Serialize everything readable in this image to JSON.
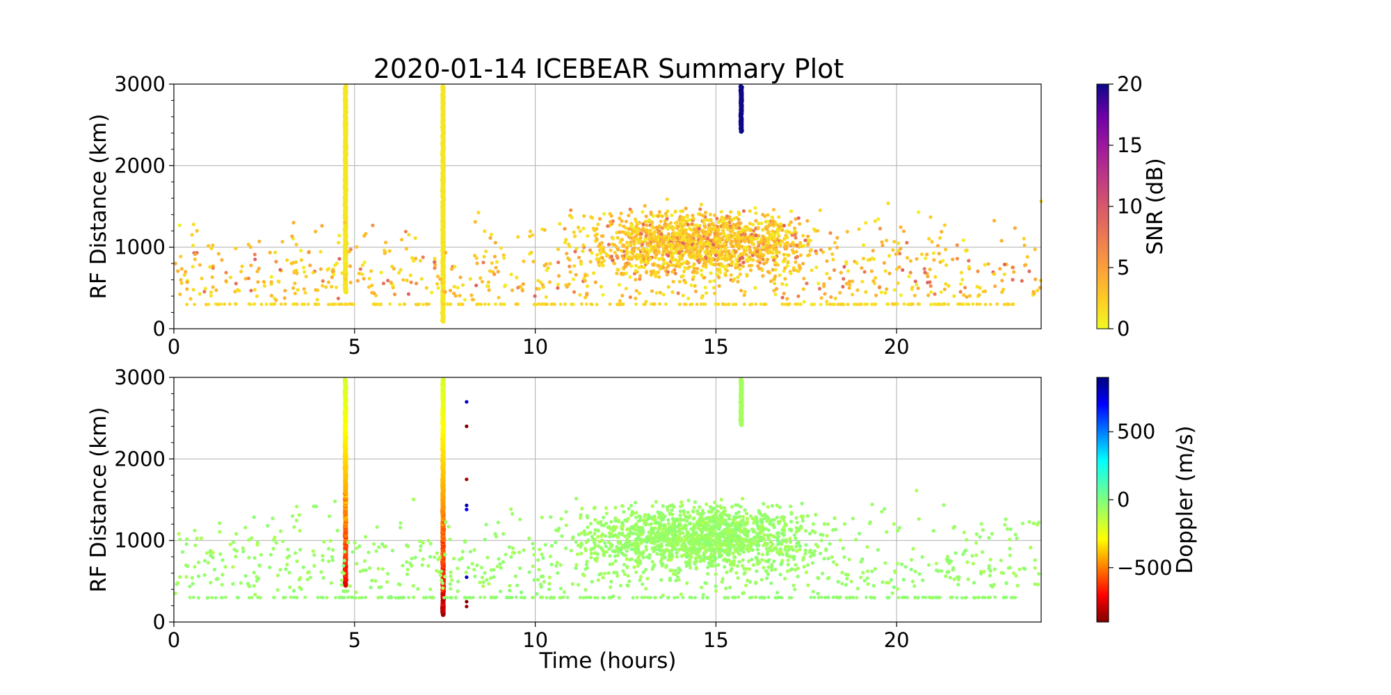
{
  "chart_data": [
    {
      "type": "scatter",
      "title": "2020-01-14 ICEBEAR Summary Plot",
      "xlabel": "",
      "ylabel": "RF Distance (km)",
      "xlim": [
        0,
        24
      ],
      "ylim": [
        0,
        3000
      ],
      "xticks": [
        0,
        5,
        10,
        15,
        20
      ],
      "yticks": [
        0,
        1000,
        2000,
        3000
      ],
      "grid": true,
      "color_variable": "SNR (dB)",
      "colormap": "plasma_r",
      "clim": [
        0,
        20
      ],
      "colorbar_ticks": [
        0,
        5,
        10,
        15,
        20
      ],
      "colors": {
        "low": "#f0f921",
        "mid_low": "#f89540",
        "mid": "#cc4778",
        "mid_high": "#7e03a8",
        "high": "#0d0887"
      },
      "features": [
        {
          "kind": "vertical-streak",
          "x": 4.75,
          "y_range": [
            450,
            2970
          ],
          "snr_db": 1
        },
        {
          "kind": "vertical-streak",
          "x": 7.45,
          "y_range": [
            90,
            2970
          ],
          "snr_db": 1
        },
        {
          "kind": "vertical-streak",
          "x": 15.7,
          "y_range": [
            2420,
            2970
          ],
          "snr_db": 20
        },
        {
          "kind": "horizontal-band",
          "y": 300,
          "x_range": [
            0.3,
            23.3
          ],
          "snr_db": 1.5
        },
        {
          "kind": "dense-cloud",
          "x_range": [
            10,
            19
          ],
          "y_range": [
            600,
            1600
          ],
          "snr_db_typical": 3
        },
        {
          "kind": "sparse-scatter",
          "x_range": [
            0,
            24
          ],
          "y_range": [
            300,
            1900
          ],
          "snr_db_typical": 2
        }
      ]
    },
    {
      "type": "scatter",
      "title": "",
      "xlabel": "Time (hours)",
      "ylabel": "RF Distance (km)",
      "xlim": [
        0,
        24
      ],
      "ylim": [
        0,
        3000
      ],
      "xticks": [
        0,
        5,
        10,
        15,
        20
      ],
      "yticks": [
        0,
        1000,
        2000,
        3000
      ],
      "grid": true,
      "color_variable": "Doppler (m/s)",
      "colormap": "jet_r",
      "clim": [
        -900,
        900
      ],
      "colorbar_ticks": [
        -500,
        0,
        500
      ],
      "colorbar_tick_labels": [
        "−500",
        "0",
        "500"
      ],
      "colors": {
        "negative": "#800000",
        "zero": "#7fff7f",
        "positive": "#000080"
      },
      "features": [
        {
          "kind": "vertical-streak",
          "x": 4.75,
          "y_range": [
            450,
            2970
          ],
          "doppler_ms_top": -200,
          "doppler_ms_bottom": -800
        },
        {
          "kind": "vertical-streak",
          "x": 7.45,
          "y_range": [
            90,
            2970
          ],
          "doppler_ms_top": -200,
          "doppler_ms_bottom": -900
        },
        {
          "kind": "vertical-streak",
          "x": 15.7,
          "y_range": [
            2420,
            2970
          ],
          "doppler_ms": -80
        },
        {
          "kind": "isolated-points",
          "x": 8.1,
          "y_values": [
            2700,
            2400,
            1750,
            1430,
            1380,
            550,
            250,
            190
          ],
          "doppler_ms": [
            800,
            -900,
            -850,
            850,
            700,
            800,
            -900,
            -850
          ]
        },
        {
          "kind": "horizontal-band",
          "y": 300,
          "x_range": [
            0.3,
            23.3
          ],
          "doppler_ms": -50
        },
        {
          "kind": "dense-cloud",
          "x_range": [
            10,
            19
          ],
          "y_range": [
            600,
            1600
          ],
          "doppler_ms_typical": -80
        },
        {
          "kind": "sparse-scatter",
          "x_range": [
            0,
            24
          ],
          "y_range": [
            300,
            1900
          ],
          "doppler_ms_typical": -40
        }
      ]
    }
  ]
}
